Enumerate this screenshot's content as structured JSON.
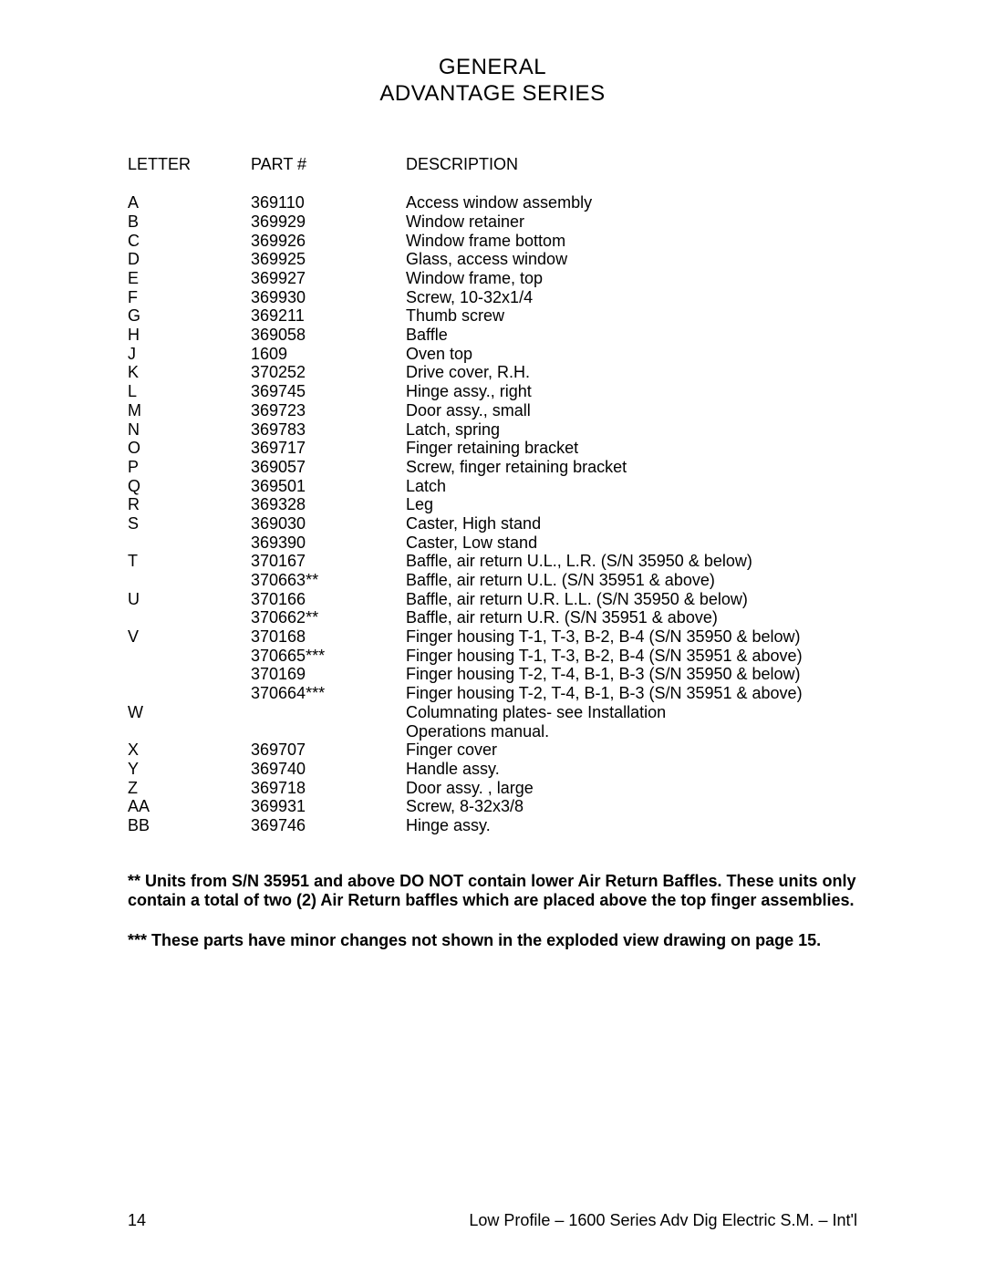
{
  "title_line1": "GENERAL",
  "title_line2": "ADVANTAGE SERIES",
  "headers": {
    "letter": "LETTER",
    "part": "PART #",
    "description": "DESCRIPTION"
  },
  "rows": [
    {
      "letter": "A",
      "part": "369110",
      "desc": "Access window assembly"
    },
    {
      "letter": "B",
      "part": "369929",
      "desc": "Window retainer"
    },
    {
      "letter": "C",
      "part": "369926",
      "desc": "Window frame bottom"
    },
    {
      "letter": "D",
      "part": "369925",
      "desc": "Glass, access window"
    },
    {
      "letter": "E",
      "part": "369927",
      "desc": "Window frame, top"
    },
    {
      "letter": "F",
      "part": "369930",
      "desc": "Screw, 10-32x1/4"
    },
    {
      "letter": "G",
      "part": "369211",
      "desc": "Thumb screw"
    },
    {
      "letter": "H",
      "part": "369058",
      "desc": "Baffle"
    },
    {
      "letter": "J",
      "part": "1609",
      "desc": "Oven top"
    },
    {
      "letter": "K",
      "part": "370252",
      "desc": "Drive cover, R.H."
    },
    {
      "letter": "L",
      "part": "369745",
      "desc": "Hinge assy., right"
    },
    {
      "letter": "M",
      "part": "369723",
      "desc": "Door assy., small"
    },
    {
      "letter": "N",
      "part": "369783",
      "desc": "Latch, spring"
    },
    {
      "letter": "O",
      "part": "369717",
      "desc": "Finger retaining bracket"
    },
    {
      "letter": "P",
      "part": "369057",
      "desc": "Screw, finger retaining bracket"
    },
    {
      "letter": "Q",
      "part": "369501",
      "desc": "Latch"
    },
    {
      "letter": "R",
      "part": "369328",
      "desc": "Leg"
    },
    {
      "letter": "S",
      "part": "369030",
      "desc": "Caster, High stand"
    },
    {
      "letter": "",
      "part": "369390",
      "desc": "Caster, Low stand"
    },
    {
      "letter": "T",
      "part": "370167",
      "desc": "Baffle, air return  U.L., L.R. (S/N 35950 & below)"
    },
    {
      "letter": "",
      "part": "370663**",
      "desc": "Baffle, air return  U.L. (S/N 35951 & above)"
    },
    {
      "letter": "U",
      "part": "370166",
      "desc": "Baffle, air return  U.R.  L.L. (S/N 35950 & below)"
    },
    {
      "letter": "",
      "part": "370662**",
      "desc": "Baffle, air return  U.R. (S/N 35951 & above)"
    },
    {
      "letter": "V",
      "part": "370168",
      "desc": "Finger housing T-1, T-3, B-2, B-4 (S/N 35950 & below)"
    },
    {
      "letter": "",
      "part": "370665***",
      "desc": "Finger housing T-1, T-3, B-2, B-4 (S/N 35951 & above)"
    },
    {
      "letter": "",
      "part": "370169",
      "desc": "Finger housing T-2, T-4, B-1, B-3 (S/N 35950 & below)"
    },
    {
      "letter": "",
      "part": "370664***",
      "desc": "Finger housing T-2, T-4, B-1, B-3 (S/N 35951 & above)"
    },
    {
      "letter": "W",
      "part": "",
      "desc": "Columnating plates- see Installation"
    },
    {
      "letter": "",
      "part": "",
      "desc": "Operations manual."
    },
    {
      "letter": "X",
      "part": "369707",
      "desc": "Finger cover"
    },
    {
      "letter": "Y",
      "part": "369740",
      "desc": "Handle assy."
    },
    {
      "letter": "Z",
      "part": "369718",
      "desc": "Door assy. , large"
    },
    {
      "letter": "AA",
      "part": "369931",
      "desc": "Screw, 8-32x3/8"
    },
    {
      "letter": "BB",
      "part": "369746",
      "desc": "Hinge assy."
    }
  ],
  "note1": "** Units from S/N 35951 and above DO NOT contain lower Air Return Baffles.  These units only contain a total of two (2) Air Return baffles which are placed above the top finger assemblies.",
  "note2": "*** These parts have minor changes not shown in the exploded view drawing on page 15.",
  "footer": {
    "page_number": "14",
    "doc_title": "Low Profile – 1600 Series Adv Dig Electric S.M. – Int'l"
  }
}
